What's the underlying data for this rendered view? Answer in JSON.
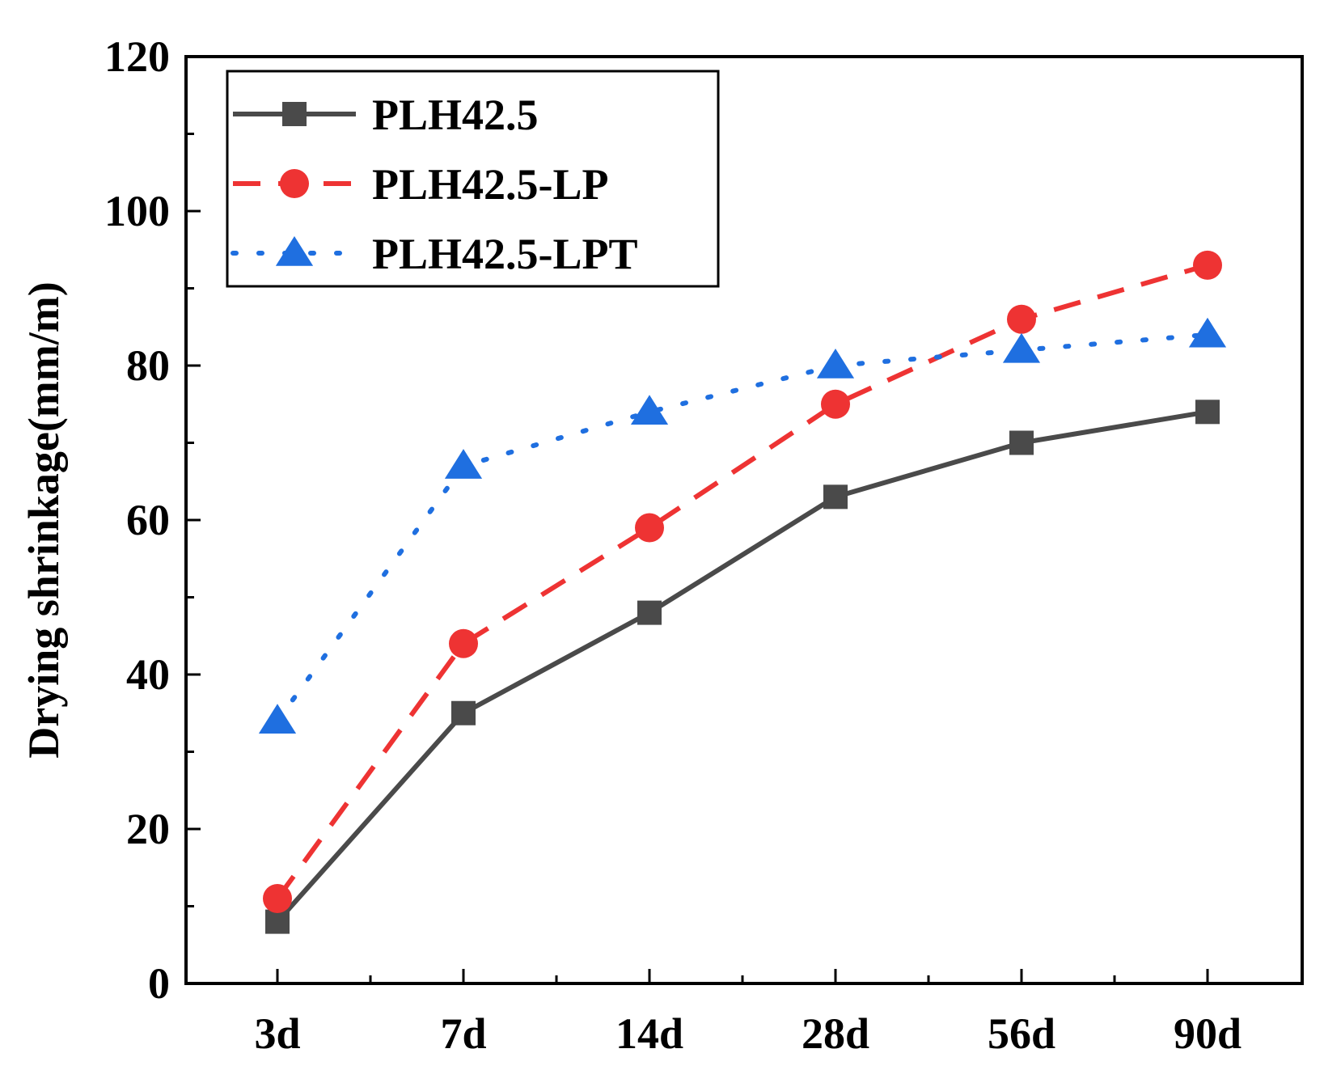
{
  "chart_data": {
    "type": "line",
    "title": "",
    "xlabel": "",
    "ylabel": "Drying shrinkage(mm/m)",
    "categories": [
      "3d",
      "7d",
      "14d",
      "28d",
      "56d",
      "90d"
    ],
    "ylim": [
      0,
      120
    ],
    "yticks": [
      0,
      20,
      40,
      60,
      80,
      100,
      120
    ],
    "grid": false,
    "legend_position": "top-left",
    "series": [
      {
        "name": "PLH42.5",
        "values": [
          8,
          35,
          48,
          63,
          70,
          74
        ],
        "color": "#4a4a4a",
        "line": "solid",
        "marker": "square"
      },
      {
        "name": "PLH42.5-LP",
        "values": [
          11,
          44,
          59,
          75,
          86,
          93
        ],
        "color": "#ee3333",
        "line": "dashed",
        "marker": "circle"
      },
      {
        "name": "PLH42.5-LPT",
        "values": [
          34,
          67,
          74,
          80,
          82,
          84
        ],
        "color": "#1f6fe0",
        "line": "dotted",
        "marker": "triangle"
      }
    ]
  }
}
